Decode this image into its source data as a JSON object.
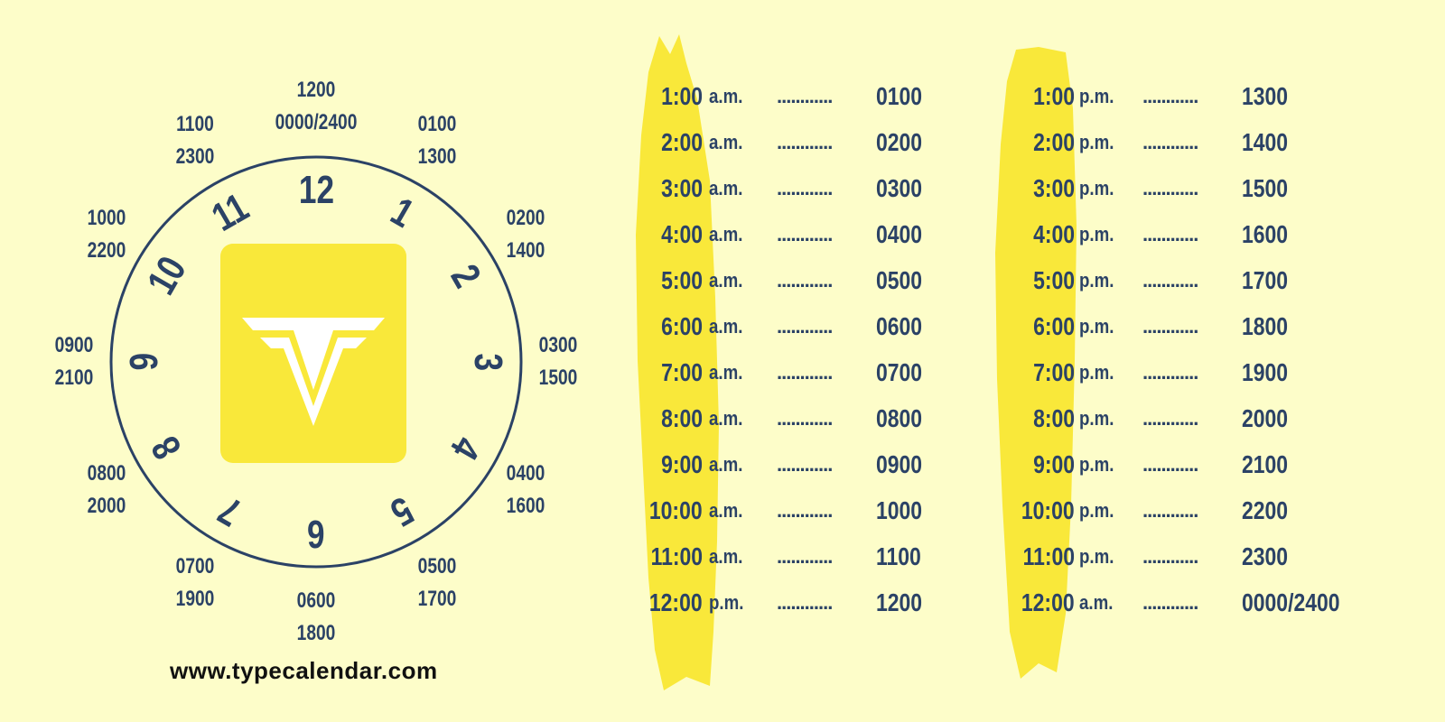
{
  "colors": {
    "background": "#fdfdc9",
    "navy": "#2b4266",
    "yellow": "#f9e83a"
  },
  "clock": {
    "numerals": [
      "12",
      "1",
      "2",
      "3",
      "4",
      "5",
      "6",
      "7",
      "8",
      "9",
      "10",
      "11"
    ],
    "conversions": [
      [
        "1200",
        "0000/2400"
      ],
      [
        "0100",
        "1300"
      ],
      [
        "0200",
        "1400"
      ],
      [
        "0300",
        "1500"
      ],
      [
        "0400",
        "1600"
      ],
      [
        "0500",
        "1700"
      ],
      [
        "0600",
        "1800"
      ],
      [
        "0700",
        "1900"
      ],
      [
        "0800",
        "2000"
      ],
      [
        "0900",
        "2100"
      ],
      [
        "1000",
        "2200"
      ],
      [
        "1100",
        "2300"
      ]
    ],
    "logo_icon": "typecalendar-v-logo"
  },
  "am_table": [
    {
      "time": "1:00",
      "period": "a.m.",
      "dots": "............",
      "military": "0100"
    },
    {
      "time": "2:00",
      "period": "a.m.",
      "dots": "............",
      "military": "0200"
    },
    {
      "time": "3:00",
      "period": "a.m.",
      "dots": "............",
      "military": "0300"
    },
    {
      "time": "4:00",
      "period": "a.m.",
      "dots": "............",
      "military": "0400"
    },
    {
      "time": "5:00",
      "period": "a.m.",
      "dots": "............",
      "military": "0500"
    },
    {
      "time": "6:00",
      "period": "a.m.",
      "dots": "............",
      "military": "0600"
    },
    {
      "time": "7:00",
      "period": "a.m.",
      "dots": "............",
      "military": "0700"
    },
    {
      "time": "8:00",
      "period": "a.m.",
      "dots": "............",
      "military": "0800"
    },
    {
      "time": "9:00",
      "period": "a.m.",
      "dots": "............",
      "military": "0900"
    },
    {
      "time": "10:00",
      "period": "a.m.",
      "dots": "............",
      "military": "1000"
    },
    {
      "time": "11:00",
      "period": "a.m.",
      "dots": "............",
      "military": "1100"
    },
    {
      "time": "12:00",
      "period": "p.m.",
      "dots": "............",
      "military": "1200"
    }
  ],
  "pm_table": [
    {
      "time": "1:00",
      "period": "p.m.",
      "dots": "............",
      "military": "1300"
    },
    {
      "time": "2:00",
      "period": "p.m.",
      "dots": "............",
      "military": "1400"
    },
    {
      "time": "3:00",
      "period": "p.m.",
      "dots": "............",
      "military": "1500"
    },
    {
      "time": "4:00",
      "period": "p.m.",
      "dots": "............",
      "military": "1600"
    },
    {
      "time": "5:00",
      "period": "p.m.",
      "dots": "............",
      "military": "1700"
    },
    {
      "time": "6:00",
      "period": "p.m.",
      "dots": "............",
      "military": "1800"
    },
    {
      "time": "7:00",
      "period": "p.m.",
      "dots": "............",
      "military": "1900"
    },
    {
      "time": "8:00",
      "period": "p.m.",
      "dots": "............",
      "military": "2000"
    },
    {
      "time": "9:00",
      "period": "p.m.",
      "dots": "............",
      "military": "2100"
    },
    {
      "time": "10:00",
      "period": "p.m.",
      "dots": "............",
      "military": "2200"
    },
    {
      "time": "11:00",
      "period": "p.m.",
      "dots": "............",
      "military": "2300"
    },
    {
      "time": "12:00",
      "period": "a.m.",
      "dots": "............",
      "military": "0000/2400"
    }
  ],
  "footer": {
    "url": "www.typecalendar.com"
  }
}
